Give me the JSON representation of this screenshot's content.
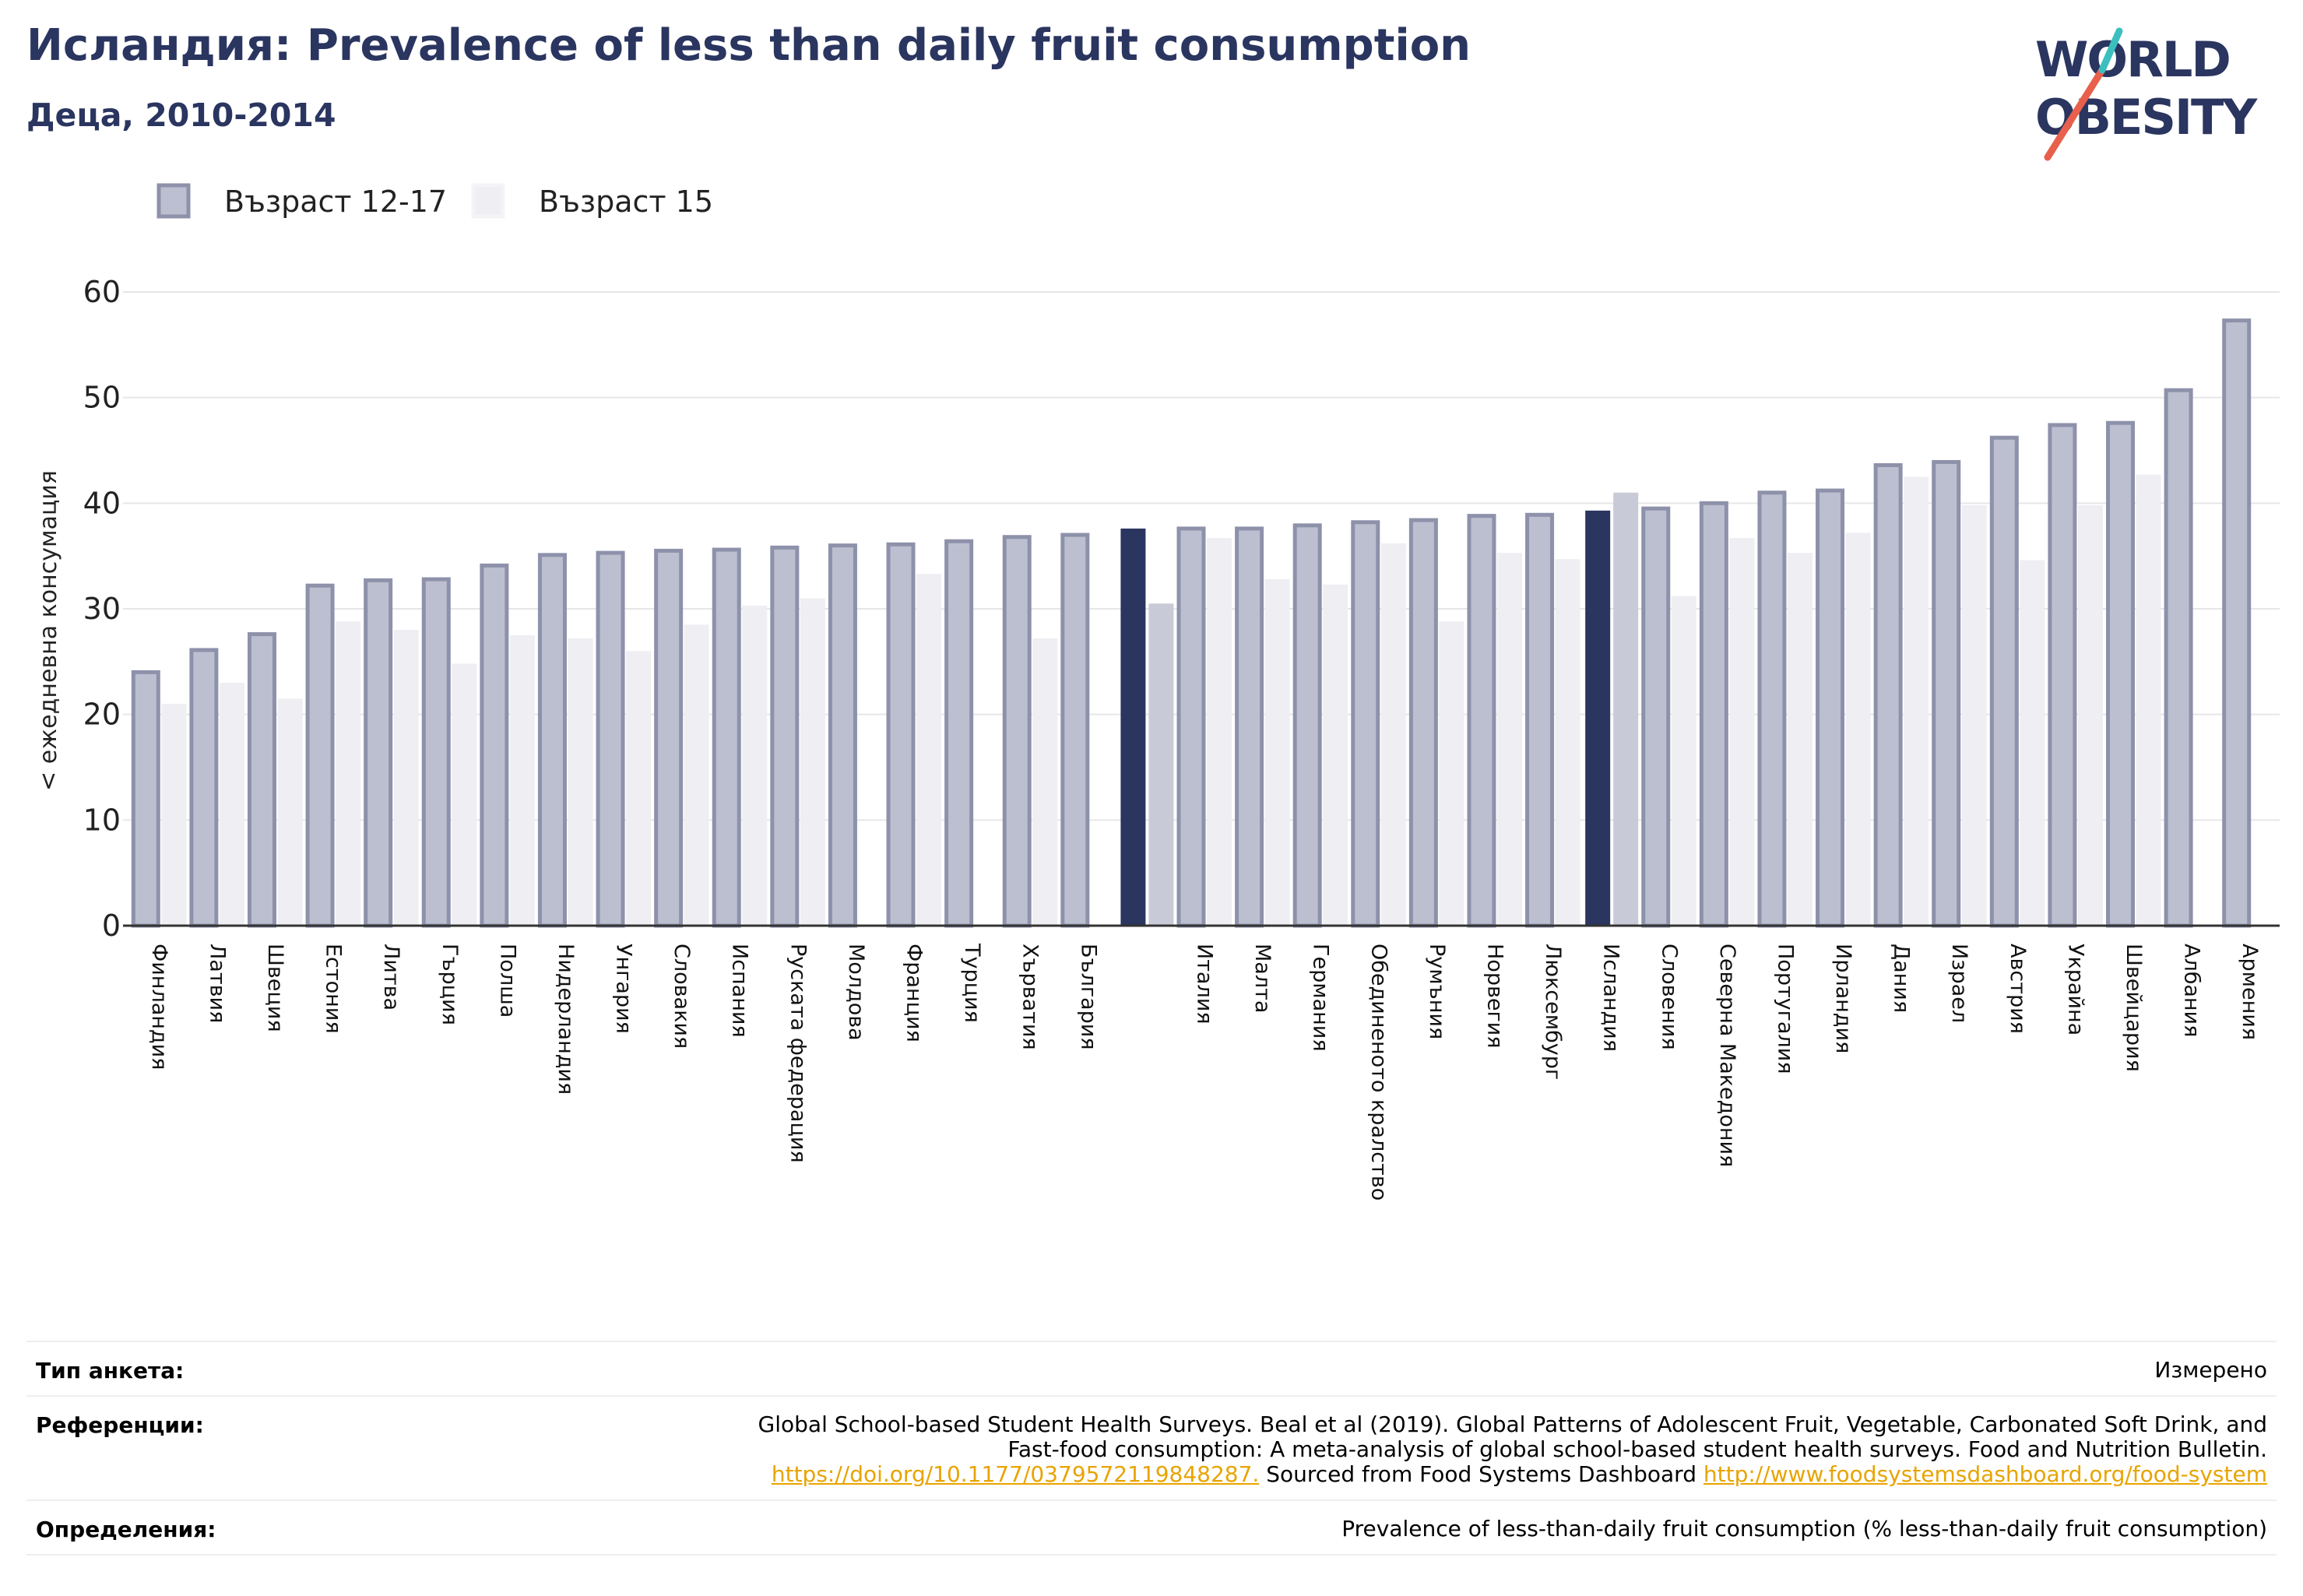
{
  "header": {
    "title": "Исландия: Prevalence of less than daily fruit consumption",
    "subtitle": "Деца, 2010-2014"
  },
  "logo": {
    "line1": "WORLD",
    "line2": "OBESITY",
    "accent_color": "#e8604c",
    "accent_color2": "#3bbfbf",
    "text_color": "#2a3560"
  },
  "colors": {
    "series1_fill": "#bcbfcf",
    "series1_stroke": "#8d91aa",
    "series2_fill": "#eeeef3",
    "highlight1": "#2a3560",
    "highlight2": "#c8cad7",
    "axis": "#333333",
    "grid": "#e6e6e6"
  },
  "chart_data": {
    "type": "bar",
    "ylabel": "< ежедневна консумация",
    "ylim": [
      0,
      60
    ],
    "yticks": [
      0,
      10,
      20,
      30,
      40,
      50,
      60
    ],
    "grid": true,
    "legend_position": "top-left",
    "categories": [
      "Финландия",
      "Латвия",
      "Швеция",
      "Естония",
      "Литва",
      "Гърция",
      "Полша",
      "Нидерландия",
      "Унгария",
      "Словакия",
      "Испания",
      "Руската федерация",
      "Молдова",
      "Франция",
      "Турция",
      "Хърватия",
      "България",
      "",
      "Италия",
      "Малта",
      "Германия",
      "Обединеното кралство",
      "Румъния",
      "Норвегия",
      "Люксембург",
      "Исландия",
      "Словения",
      "Северна Македония",
      "Португалия",
      "Ирландия",
      "Дания",
      "Израел",
      "Австрия",
      "Украйна",
      "Швейцария",
      "Албания",
      "Армения"
    ],
    "highlight_indices": [
      17,
      25
    ],
    "series": [
      {
        "name": "Възраст 12-17",
        "values": [
          24.0,
          26.1,
          27.6,
          32.2,
          32.7,
          32.8,
          34.1,
          35.1,
          35.3,
          35.5,
          35.6,
          35.8,
          36.0,
          36.1,
          36.4,
          36.8,
          37.0,
          37.6,
          37.6,
          37.6,
          37.9,
          38.2,
          38.4,
          38.8,
          38.9,
          39.3,
          39.5,
          40.0,
          41.0,
          41.2,
          43.6,
          43.9,
          46.2,
          47.4,
          47.6,
          50.7,
          57.3
        ]
      },
      {
        "name": "Възраст 15",
        "values": [
          21.0,
          23.0,
          21.5,
          28.8,
          28.0,
          24.8,
          27.5,
          27.2,
          26.0,
          28.5,
          30.3,
          31.0,
          null,
          33.3,
          null,
          27.2,
          null,
          30.5,
          36.7,
          32.8,
          32.3,
          36.2,
          28.8,
          35.3,
          34.7,
          41.0,
          31.2,
          36.7,
          35.3,
          37.2,
          42.5,
          39.8,
          34.6,
          39.8,
          42.7,
          null,
          null
        ]
      }
    ]
  },
  "footer": {
    "survey_type_label": "Тип анкета:",
    "survey_type_value": "Измерено",
    "references_label": "Референции:",
    "references_line1": "Global School-based Student Health Surveys. Beal et al (2019). Global Patterns of Adolescent Fruit, Vegetable, Carbonated Soft Drink, and",
    "references_line2": "Fast-food consumption: A meta-analysis of global school-based student health surveys. Food and Nutrition Bulletin.",
    "references_link1": "https://doi.org/10.1177/0379572119848287.",
    "references_sourced": " Sourced from Food Systems Dashboard ",
    "references_link2": "http://www.foodsystemsdashboard.org/food-system",
    "definitions_label": "Определения:",
    "definitions_value": "Prevalence of less-than-daily fruit consumption (% less-than-daily fruit consumption)"
  }
}
